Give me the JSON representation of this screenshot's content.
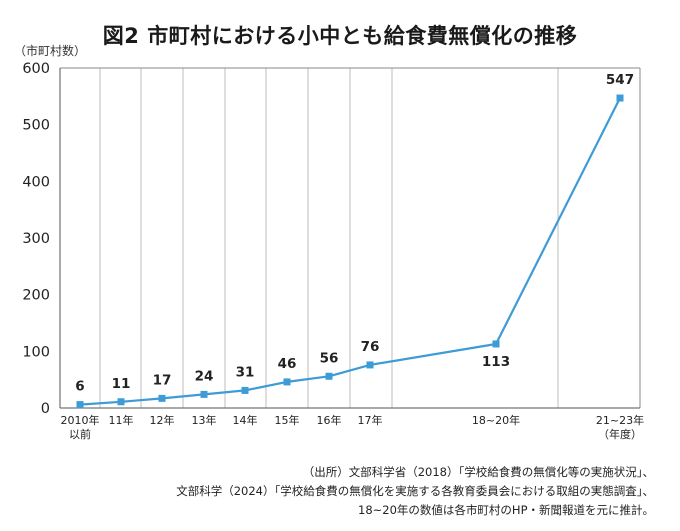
{
  "title": "図2 市町村における小中とも給食費無償化の推移",
  "y_unit_label": "（市町村数）",
  "chart_data": {
    "type": "line",
    "categories": [
      "2010年以前",
      "11年",
      "12年",
      "13年",
      "14年",
      "15年",
      "16年",
      "17年",
      "18~20年",
      "21~23年（年度）"
    ],
    "category_lines": [
      [
        "2010年",
        "以前"
      ],
      [
        "11年"
      ],
      [
        "12年"
      ],
      [
        "13年"
      ],
      [
        "14年"
      ],
      [
        "15年"
      ],
      [
        "16年"
      ],
      [
        "17年"
      ],
      [
        "18~20年"
      ],
      [
        "21~23年",
        "（年度）"
      ]
    ],
    "values": [
      6,
      11,
      17,
      24,
      31,
      46,
      56,
      76,
      113,
      547
    ],
    "data_labels": [
      "6",
      "11",
      "17",
      "24",
      "31",
      "46",
      "56",
      "76",
      "113",
      "547"
    ],
    "ylim": [
      0,
      600
    ],
    "yticks": [
      0,
      100,
      200,
      300,
      400,
      500,
      600
    ],
    "grid": "vertical",
    "series_color": "#3d9bd6",
    "marker": "square"
  },
  "source_notes": [
    "（出所）文部科学省（2018）「学校給食費の無償化等の実施状況」、",
    "文部科学（2024）「学校給食費の無償化を実施する各教育委員会における取組の実態調査」、",
    "18~20年の数値は各市町村のHP・新聞報道を元に推計。"
  ]
}
